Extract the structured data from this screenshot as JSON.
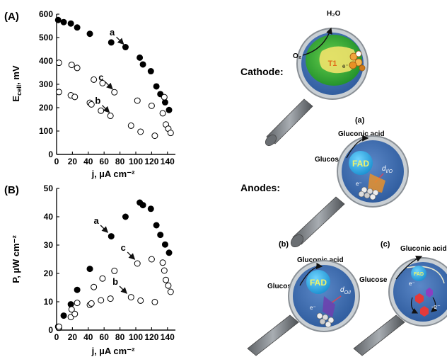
{
  "chart_data": [
    {
      "panel": "(A)",
      "type": "scatter",
      "xlabel": "j, µA cm⁻²",
      "ylabel": "E_cell, mV",
      "xlim": [
        0,
        150
      ],
      "ylim": [
        0,
        600
      ],
      "x_ticks": [
        "0",
        "20",
        "40",
        "60",
        "80",
        "100",
        "120",
        "140"
      ],
      "y_ticks": [
        "0",
        "100",
        "200",
        "300",
        "400",
        "500",
        "600"
      ],
      "grid": false,
      "series": [
        {
          "name": "a",
          "marker": "filled",
          "x": [
            2,
            9,
            18,
            26,
            42,
            69,
            87,
            105,
            109,
            119,
            126,
            131,
            137,
            142
          ],
          "y": [
            575,
            566,
            560,
            543,
            516,
            479,
            459,
            414,
            385,
            356,
            291,
            258,
            223,
            190
          ]
        },
        {
          "name": "b",
          "marker": "open",
          "x": [
            3,
            18,
            23,
            42,
            44,
            56,
            68,
            94,
            106,
            124,
            134,
            138,
            141,
            144
          ],
          "y": [
            267,
            253,
            246,
            221,
            214,
            187,
            165,
            123,
            97,
            80,
            176,
            128,
            110,
            92
          ]
        },
        {
          "name": "c",
          "marker": "open",
          "x": [
            3,
            19,
            26,
            47,
            58,
            73,
            102,
            120,
            136
          ],
          "y": [
            392,
            383,
            370,
            320,
            305,
            266,
            230,
            208,
            245
          ]
        }
      ],
      "annotations": [
        {
          "label": "a",
          "x": 88,
          "y": 460
        },
        {
          "label": "b",
          "x": 70,
          "y": 168
        },
        {
          "label": "c",
          "x": 74,
          "y": 268
        }
      ]
    },
    {
      "panel": "(B)",
      "type": "scatter",
      "xlabel": "j, µA cm⁻²",
      "ylabel": "P, µW cm⁻²",
      "xlim": [
        0,
        150
      ],
      "ylim": [
        0,
        50
      ],
      "x_ticks": [
        "0",
        "20",
        "40",
        "60",
        "80",
        "100",
        "120",
        "140"
      ],
      "y_ticks": [
        "0",
        "10",
        "20",
        "30",
        "40",
        "50"
      ],
      "grid": false,
      "series": [
        {
          "name": "a",
          "marker": "filled",
          "x": [
            2,
            9,
            18,
            26,
            42,
            69,
            87,
            105,
            109,
            119,
            126,
            131,
            137,
            142
          ],
          "y": [
            1.2,
            5.1,
            9.1,
            14.2,
            21.6,
            33.1,
            40.0,
            45.0,
            44.1,
            42.8,
            37.0,
            33.6,
            30.2,
            27.3
          ]
        },
        {
          "name": "b",
          "marker": "open",
          "x": [
            3,
            18,
            23,
            42,
            44,
            56,
            68,
            94,
            106,
            124,
            134,
            138,
            141,
            144
          ],
          "y": [
            0.8,
            4.6,
            5.7,
            8.9,
            9.4,
            10.5,
            11.1,
            11.6,
            10.4,
            9.9,
            23.8,
            17.7,
            15.7,
            13.5
          ]
        },
        {
          "name": "c",
          "marker": "open",
          "x": [
            3,
            19,
            26,
            47,
            58,
            73,
            102,
            120,
            136
          ],
          "y": [
            1.2,
            7.3,
            9.6,
            15.2,
            18.2,
            20.9,
            23.5,
            25.0,
            21.0
          ]
        }
      ],
      "annotations": [
        {
          "label": "a",
          "x": 68,
          "y": 33.5
        },
        {
          "label": "b",
          "x": 92,
          "y": 12
        },
        {
          "label": "c",
          "x": 102,
          "y": 24
        }
      ]
    }
  ],
  "panel_labels": {
    "A": "(A)",
    "B": "(B)"
  },
  "schematic": {
    "cathode_label": "Cathode:",
    "anodes_label": "Anodes:",
    "h2o": "H₂O",
    "o2": "O₂",
    "t1": "T1",
    "electron": "e⁻",
    "sub_a": "(a)",
    "sub_b": "(b)",
    "sub_c": "(c)",
    "gluconic_acid": "Gluconic acid",
    "glucose": "Glucose",
    "fad": "FAD",
    "d_io": "d",
    "d_io_sub": "I/O",
    "d_oi": "d",
    "d_oi_sub": "O/I",
    "minus_e": "-e⁻"
  },
  "colors": {
    "lens_blue": "#3f6fb3",
    "lens_rim": "#b5bcc2",
    "cathode_green": "#2fae3a",
    "fad_blue": "#2aa7de",
    "fad_text": "#e7f05a",
    "handle": "#7b7f84"
  }
}
